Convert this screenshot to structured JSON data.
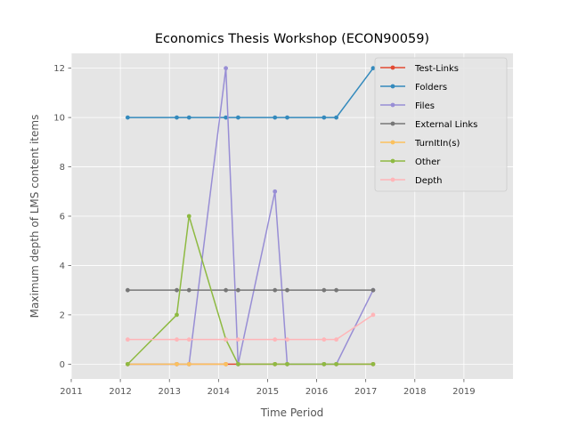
{
  "chart_data": {
    "type": "line",
    "title": "Economics Thesis Workshop (ECON90059)",
    "xlabel": "Time Period",
    "ylabel": "Maximum depth of LMS content items",
    "xlim": [
      2011,
      2020
    ],
    "ylim": [
      -0.6,
      12.6
    ],
    "xticks": [
      2011,
      2012,
      2013,
      2014,
      2015,
      2016,
      2017,
      2018,
      2019
    ],
    "yticks": [
      0,
      2,
      4,
      6,
      8,
      10,
      12
    ],
    "grid": true,
    "legend_position": "top-right",
    "x": [
      2012.15,
      2013.15,
      2013.4,
      2014.15,
      2014.4,
      2015.15,
      2015.4,
      2016.15,
      2016.4,
      2017.15
    ],
    "series": [
      {
        "name": "Test-Links",
        "color": "#E24A33",
        "values": [
          0,
          0,
          0,
          0,
          0,
          0,
          0,
          0,
          0,
          0
        ]
      },
      {
        "name": "Folders",
        "color": "#348ABD",
        "values": [
          10,
          10,
          10,
          10,
          10,
          10,
          10,
          10,
          10,
          12
        ]
      },
      {
        "name": "Files",
        "color": "#988ED5",
        "values": [
          0,
          0,
          0,
          12,
          0,
          7,
          0,
          0,
          0,
          3
        ]
      },
      {
        "name": "External Links",
        "color": "#777777",
        "values": [
          3,
          3,
          3,
          3,
          3,
          3,
          3,
          3,
          3,
          3
        ]
      },
      {
        "name": "TurnItIn(s)",
        "color": "#FBC15E",
        "values": [
          0,
          0,
          0,
          0,
          null,
          null,
          null,
          null,
          null,
          null
        ]
      },
      {
        "name": "Other",
        "color": "#8EBA42",
        "values": [
          0,
          2,
          6,
          1,
          0,
          0,
          0,
          0,
          0,
          0
        ]
      },
      {
        "name": "Depth",
        "color": "#FFB5B8",
        "values": [
          1,
          1,
          1,
          1,
          1,
          1,
          1,
          1,
          1,
          2
        ]
      }
    ]
  }
}
